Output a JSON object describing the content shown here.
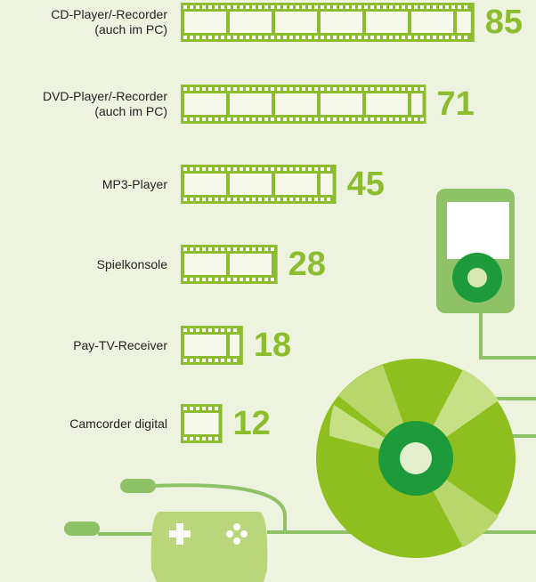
{
  "chart_data": {
    "type": "bar",
    "categories": [
      "CD-Player/-Recorder\n(auch im PC)",
      "DVD-Player/-Recorder\n(auch im PC)",
      "MP3-Player",
      "Spielkonsole",
      "Pay-TV-Receiver",
      "Camcorder digital"
    ],
    "values": [
      85,
      71,
      45,
      28,
      18,
      12
    ],
    "color": "#8cbd2f"
  }
}
